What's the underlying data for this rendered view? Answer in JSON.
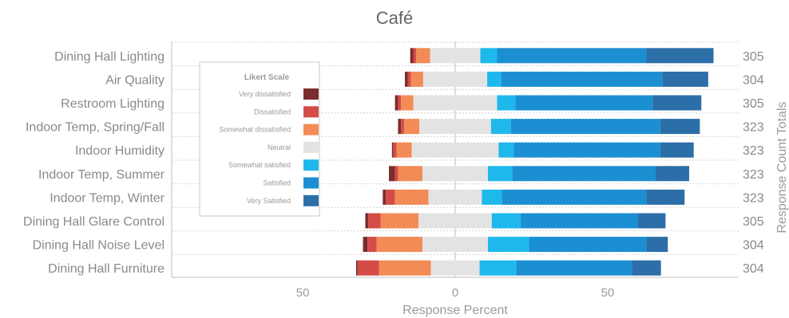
{
  "chart_data": {
    "type": "bar",
    "subtype": "diverging-stacked-horizontal",
    "title": "Café",
    "xlabel": "Response Percent",
    "ylabel_right": "Response Count Totals",
    "xlim": [
      -93,
      93
    ],
    "xticks": [
      {
        "value": -50,
        "label": "50"
      },
      {
        "value": 0,
        "label": "0"
      },
      {
        "value": 50,
        "label": "50"
      }
    ],
    "grid": true,
    "legend": {
      "title": "Likert Scale",
      "placement": "left-inside"
    },
    "levels": [
      "Very dissatisfied",
      "Dissatisfied",
      "Somewhat dissatisfied",
      "Neutral",
      "Somewhat satisfied",
      "Satisfied",
      "Very Satisfied"
    ],
    "colors": [
      "#7b2d2d",
      "#d44c47",
      "#f28b55",
      "#e3e3e3",
      "#1fb8ec",
      "#1c8fd3",
      "#2c6ea8"
    ],
    "categories": [
      "Dining Hall Lighting",
      "Air Quality",
      "Restroom Lighting",
      "Indoor Temp, Spring/Fall",
      "Indoor Humidity",
      "Indoor Temp, Summer",
      "Indoor Temp, Winter",
      "Dining Hall Glare Control",
      "Dining Hall Noise Level",
      "Dining Hall Furniture"
    ],
    "totals": [
      "305",
      "304",
      "305",
      "323",
      "323",
      "323",
      "323",
      "305",
      "304",
      "304"
    ],
    "series": [
      {
        "name": "Very dissatisfied",
        "values": [
          1.0,
          1.0,
          1.0,
          1.0,
          0.5,
          2.0,
          1.0,
          1.0,
          1.5,
          0.5
        ]
      },
      {
        "name": "Dissatisfied",
        "values": [
          1.0,
          1.0,
          1.0,
          1.0,
          1.0,
          1.0,
          3.0,
          4.0,
          3.0,
          7.0
        ]
      },
      {
        "name": "Somewhat dissatisfied",
        "values": [
          4.5,
          4.0,
          4.0,
          5.0,
          5.0,
          8.0,
          11.0,
          12.5,
          15.0,
          17.0
        ]
      },
      {
        "name": "Neutral",
        "values": [
          16.5,
          21.0,
          27.5,
          23.5,
          28.5,
          21.5,
          17.5,
          24.0,
          21.5,
          16.0
        ]
      },
      {
        "name": "Somewhat satisfied",
        "values": [
          5.5,
          4.5,
          6.0,
          6.5,
          5.0,
          8.0,
          6.5,
          9.5,
          13.5,
          12.0
        ]
      },
      {
        "name": "Satisfied",
        "values": [
          49.0,
          53.0,
          45.0,
          49.0,
          48.0,
          47.0,
          47.5,
          38.5,
          38.5,
          38.0
        ]
      },
      {
        "name": "Very Satisfied",
        "values": [
          22.0,
          15.0,
          16.0,
          13.0,
          11.0,
          11.0,
          12.5,
          9.0,
          7.0,
          9.5
        ]
      }
    ]
  }
}
